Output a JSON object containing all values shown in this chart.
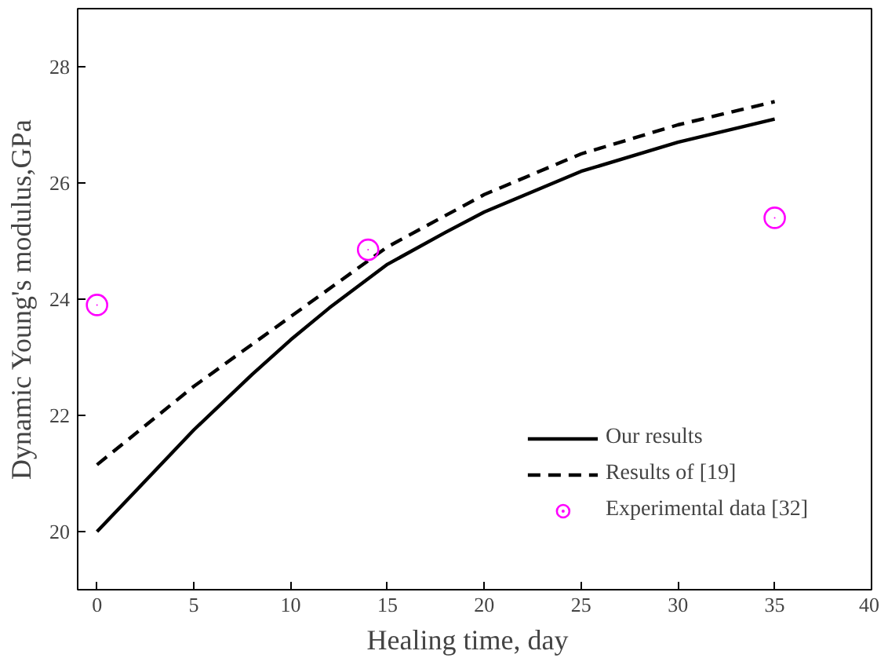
{
  "chart_data": {
    "type": "line",
    "xlabel": "Healing time,   day",
    "ylabel": "Dynamic Young's modulus,GPa",
    "xlim": [
      -1,
      40
    ],
    "ylim": [
      19,
      29
    ],
    "xticks": [
      0,
      5,
      10,
      15,
      20,
      25,
      30,
      35,
      40
    ],
    "yticks": [
      20,
      22,
      24,
      26,
      28
    ],
    "grid": false,
    "legend": "bottom right",
    "series": [
      {
        "name": "Our results",
        "color": "#000000",
        "line_style": "solid",
        "marker": "none",
        "x": [
          0,
          2,
          5,
          8,
          10,
          12,
          15,
          18,
          20,
          25,
          30,
          35
        ],
        "values": [
          20,
          20.7,
          21.75,
          22.7,
          23.3,
          23.85,
          24.6,
          25.15,
          25.5,
          26.2,
          26.7,
          27.1
        ]
      },
      {
        "name": "Results of [19]",
        "color": "#000000",
        "line_style": "dashed",
        "marker": "none",
        "x": [
          0,
          5,
          10,
          15,
          20,
          25,
          30,
          35
        ],
        "values": [
          21.15,
          22.5,
          23.7,
          24.9,
          25.8,
          26.5,
          27.0,
          27.4
        ]
      },
      {
        "name": "Experimental data [32]",
        "type": "scatter",
        "color": "#ff00ff",
        "marker": "circle",
        "x": [
          0,
          14,
          35
        ],
        "values": [
          23.9,
          24.85,
          25.4
        ]
      }
    ]
  }
}
